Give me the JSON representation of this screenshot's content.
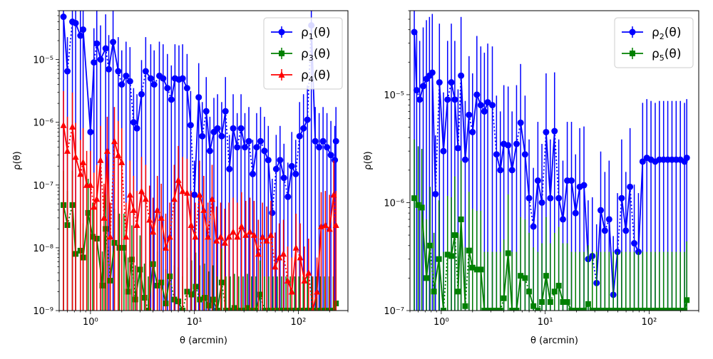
{
  "chart_data": [
    {
      "type": "line",
      "xscale": "log",
      "yscale": "log",
      "xlim": [
        0.5,
        300
      ],
      "ylim": [
        1e-09,
        6e-05
      ],
      "xlabel": "θ (arcmin)",
      "ylabel": "ρ(θ)",
      "xticks": [
        "10⁰",
        "10¹",
        "10²"
      ],
      "yticks": [
        "10⁻⁹",
        "10⁻⁸",
        "10⁻⁷",
        "10⁻⁶",
        "10⁻⁵"
      ],
      "legend_position": "top-right",
      "series": [
        {
          "name": "ρ1(θ)",
          "base": "ρ",
          "sub": "1",
          "color": "#0000ff",
          "marker": "circle",
          "x": [
            0.55,
            0.6,
            0.67,
            0.72,
            0.8,
            0.85,
            1.0,
            1.08,
            1.15,
            1.25,
            1.4,
            1.5,
            1.65,
            1.85,
            2.0,
            2.2,
            2.4,
            2.6,
            2.8,
            3.1,
            3.4,
            3.8,
            4.1,
            4.6,
            5.0,
            5.5,
            6.0,
            6.5,
            7.1,
            7.7,
            8.5,
            9.2,
            10.0,
            11.0,
            11.9,
            13.0,
            14.1,
            15.4,
            16.7,
            18.3,
            19.9,
            21.7,
            23.6,
            25.8,
            28.1,
            30.6,
            33.4,
            36.4,
            39.7,
            43.3,
            47.2,
            51.4,
            56.1,
            61.2,
            66.7,
            72.7,
            79.3,
            86.5,
            94.3,
            102.8,
            112.1,
            122.2,
            133.3,
            145.4,
            158.5,
            172.9,
            188.5,
            205.6,
            224.2,
            230.0
          ],
          "y": [
            4.8e-05,
            6.5e-06,
            4e-05,
            3.8e-05,
            2.4e-05,
            3e-05,
            7e-07,
            9e-06,
            1.8e-05,
            1e-05,
            1.5e-05,
            7e-06,
            1.9e-05,
            6.5e-06,
            4e-06,
            5.5e-06,
            4.5e-06,
            1e-06,
            8e-07,
            2.8e-06,
            6.5e-06,
            5e-06,
            4e-06,
            5.5e-06,
            5e-06,
            3.5e-06,
            2.3e-06,
            5e-06,
            4.8e-06,
            5e-06,
            3.5e-06,
            9e-07,
            7e-08,
            2.5e-06,
            6e-07,
            1.5e-06,
            3.5e-07,
            7e-07,
            8e-07,
            6e-07,
            1.5e-06,
            1.8e-07,
            8e-07,
            4e-07,
            8e-07,
            4e-07,
            5e-07,
            1.5e-07,
            4e-07,
            5e-07,
            3.5e-07,
            2.5e-07,
            3.6e-08,
            1.8e-07,
            2.5e-07,
            1.3e-07,
            6.5e-08,
            2e-07,
            1.5e-07,
            6e-07,
            8e-07,
            1.1e-06,
            3.5e-05,
            5e-07,
            4e-07,
            5e-07,
            4e-07,
            3e-07,
            2.5e-07,
            5e-07
          ]
        },
        {
          "name": "ρ3(θ)",
          "base": "ρ",
          "sub": "3",
          "color": "#008000",
          "marker": "square",
          "x": [
            0.55,
            0.6,
            0.67,
            0.72,
            0.8,
            0.85,
            0.95,
            1.05,
            1.15,
            1.3,
            1.4,
            1.55,
            1.7,
            1.9,
            2.1,
            2.3,
            2.5,
            2.7,
            3.0,
            3.3,
            3.6,
            4.0,
            4.4,
            4.8,
            5.3,
            5.8,
            6.4,
            7.0,
            7.7,
            8.5,
            9.4,
            10.3,
            11.3,
            12.5,
            13.7,
            15.1,
            16.6,
            18.3,
            20.1,
            22.1,
            24.3,
            26.7,
            29.4,
            32.3,
            35.5,
            39.0,
            42.9,
            47.2,
            51.9,
            57.1,
            62.8,
            69.1,
            76.0,
            83.6,
            92.0,
            101.2,
            111.3,
            122.4,
            134.6,
            148.1,
            162.9,
            179.2,
            197.1,
            216.8,
            230.0
          ],
          "y": [
            4.8e-08,
            2.3e-08,
            4.8e-08,
            8e-09,
            9e-09,
            7e-09,
            3.6e-08,
            1.5e-08,
            1.4e-08,
            2.5e-09,
            2e-08,
            3e-09,
            1.2e-08,
            1e-08,
            1e-08,
            2e-09,
            6.5e-09,
            1.5e-09,
            4.5e-09,
            1.6e-09,
            1e-09,
            5.5e-09,
            2.5e-09,
            2.8e-09,
            1.3e-09,
            3.5e-09,
            1.5e-09,
            1.4e-09,
            1e-09,
            2e-09,
            1.8e-09,
            2.4e-09,
            1.5e-09,
            1.6e-09,
            1.2e-09,
            1.5e-09,
            1e-09,
            2.8e-09,
            1e-09,
            1e-09,
            1.1e-09,
            1e-09,
            1e-09,
            1.1e-09,
            1e-09,
            1e-09,
            1.8e-09,
            1e-09,
            1e-09,
            1e-09,
            1e-09,
            1e-09,
            1e-09,
            1e-09,
            1e-09,
            1e-09,
            1e-09,
            1e-09,
            1e-09,
            1e-09,
            1e-09,
            1e-09,
            1e-09,
            1e-09,
            1.3e-09
          ]
        },
        {
          "name": "ρ4(θ)",
          "base": "ρ",
          "sub": "4",
          "color": "#ff0000",
          "marker": "triangle",
          "x": [
            0.55,
            0.6,
            0.67,
            0.72,
            0.8,
            0.85,
            0.92,
            1.0,
            1.08,
            1.15,
            1.25,
            1.35,
            1.45,
            1.55,
            1.7,
            1.85,
            2.0,
            2.2,
            2.4,
            2.6,
            2.8,
            3.1,
            3.4,
            3.7,
            4.0,
            4.4,
            4.8,
            5.3,
            5.8,
            6.4,
            7.0,
            7.7,
            8.5,
            9.3,
            10.2,
            11.2,
            12.3,
            13.5,
            14.8,
            16.3,
            17.9,
            19.6,
            21.5,
            23.6,
            25.9,
            28.4,
            31.2,
            34.2,
            37.5,
            41.2,
            45.2,
            49.6,
            54.4,
            59.7,
            65.5,
            71.9,
            78.9,
            86.6,
            95.0,
            104.2,
            114.4,
            125.5,
            137.7,
            151.1,
            165.8,
            181.9,
            199.6,
            219.0,
            230.0
          ],
          "y": [
            9e-07,
            3.5e-07,
            8.5e-07,
            2.8e-07,
            1.5e-07,
            2.3e-07,
            1e-07,
            1e-07,
            4.5e-08,
            6e-08,
            2.5e-07,
            3e-08,
            3.5e-07,
            1.5e-08,
            5e-07,
            3e-07,
            2.3e-07,
            1.5e-08,
            7e-08,
            4e-08,
            2.3e-08,
            8e-08,
            6e-08,
            2.8e-08,
            1.8e-08,
            4e-08,
            3e-08,
            1e-08,
            1.5e-08,
            6e-08,
            1.2e-07,
            8e-08,
            7.5e-08,
            2.3e-08,
            1.5e-08,
            7e-08,
            4e-08,
            1.5e-08,
            6e-08,
            1.3e-08,
            1.5e-08,
            1.2e-08,
            1.5e-08,
            1.8e-08,
            1.5e-08,
            2.2e-08,
            1.6e-08,
            1.8e-08,
            1.6e-08,
            8e-09,
            1.5e-08,
            1.3e-08,
            1.6e-08,
            5e-09,
            7e-09,
            8e-09,
            3e-09,
            2e-09,
            1e-08,
            7e-09,
            3e-09,
            4e-09,
            1e-09,
            2e-09,
            2.2e-08,
            2.3e-08,
            2e-08,
            7e-08,
            2.3e-08
          ]
        }
      ]
    },
    {
      "type": "line",
      "xscale": "log",
      "yscale": "log",
      "xlim": [
        0.5,
        300
      ],
      "ylim": [
        1e-07,
        6e-05
      ],
      "xlabel": "θ (arcmin)",
      "ylabel": "ρ(θ)",
      "xticks": [
        "10⁰",
        "10¹",
        "10²"
      ],
      "yticks": [
        "10⁻⁷",
        "10⁻⁶",
        "10⁻⁵"
      ],
      "legend_position": "top-right",
      "series": [
        {
          "name": "ρ2(θ)",
          "base": "ρ",
          "sub": "2",
          "color": "#0000ff",
          "marker": "circle",
          "x": [
            0.55,
            0.58,
            0.62,
            0.67,
            0.72,
            0.77,
            0.82,
            0.88,
            0.96,
            1.05,
            1.15,
            1.25,
            1.35,
            1.45,
            1.55,
            1.7,
            1.85,
            2.0,
            2.2,
            2.4,
            2.6,
            2.8,
            3.1,
            3.4,
            3.7,
            4.0,
            4.4,
            4.8,
            5.3,
            5.8,
            6.4,
            7.0,
            7.7,
            8.5,
            9.3,
            10.2,
            11.2,
            12.3,
            13.5,
            14.8,
            16.3,
            17.9,
            19.6,
            21.5,
            23.6,
            25.9,
            28.4,
            31.2,
            34.2,
            37.5,
            41.2,
            45.2,
            49.6,
            54.4,
            59.7,
            65.5,
            71.9,
            78.9,
            86.6,
            95.0,
            104.2,
            114.4,
            125.5,
            137.7,
            151.1,
            165.8,
            181.9,
            199.6,
            219.0,
            230.0
          ],
          "y": [
            3.8e-05,
            1.1e-05,
            9e-06,
            1.2e-05,
            1.4e-05,
            1.5e-05,
            1.6e-05,
            1.2e-06,
            1.3e-05,
            3e-06,
            9e-06,
            1.3e-05,
            9e-06,
            3.2e-06,
            1.5e-05,
            2.5e-06,
            6.5e-06,
            4.5e-06,
            1e-05,
            8e-06,
            7e-06,
            8.5e-06,
            8e-06,
            2.8e-06,
            2e-06,
            3.5e-06,
            3.4e-06,
            2e-06,
            3.5e-06,
            5.5e-06,
            2.8e-06,
            1.1e-06,
            6e-07,
            1.6e-06,
            1e-06,
            4.5e-06,
            1.1e-06,
            4.6e-06,
            1.1e-06,
            7e-07,
            1.6e-06,
            1.6e-06,
            8e-07,
            1.4e-06,
            1.45e-06,
            3e-07,
            3.2e-07,
            1.8e-07,
            8.5e-07,
            5.5e-07,
            7e-07,
            1.4e-07,
            3.5e-07,
            1.1e-06,
            5.5e-07,
            1.4e-06,
            4.2e-07,
            3.5e-07,
            2.4e-06,
            2.6e-06,
            2.5e-06,
            2.4e-06,
            2.5e-06,
            2.5e-06,
            2.5e-06,
            2.5e-06,
            2.5e-06,
            2.5e-06,
            2.4e-06,
            2.6e-06
          ]
        },
        {
          "name": "ρ5(θ)",
          "base": "ρ",
          "sub": "5",
          "color": "#008000",
          "marker": "square",
          "x": [
            0.55,
            0.6,
            0.65,
            0.72,
            0.78,
            0.85,
            0.95,
            1.05,
            1.15,
            1.25,
            1.35,
            1.45,
            1.55,
            1.7,
            1.85,
            2.0,
            2.2,
            2.4,
            2.6,
            2.8,
            3.1,
            3.4,
            3.7,
            4.0,
            4.4,
            4.8,
            5.3,
            5.8,
            6.4,
            7.0,
            7.7,
            8.5,
            9.3,
            10.2,
            11.2,
            12.3,
            13.5,
            14.8,
            16.3,
            17.9,
            19.6,
            21.5,
            23.6,
            25.9,
            28.4,
            31.2,
            34.2,
            37.5,
            41.2,
            45.2,
            49.6,
            54.4,
            59.7,
            65.5,
            71.9,
            78.9,
            86.6,
            95.0,
            104.2,
            114.4,
            125.5,
            137.7,
            151.1,
            165.8,
            181.9,
            199.6,
            219.0,
            230.0
          ],
          "y": [
            1.1e-06,
            9.5e-07,
            9e-07,
            2e-07,
            4e-07,
            1.5e-07,
            3e-07,
            1e-07,
            3.3e-07,
            3.2e-07,
            5e-07,
            1.5e-07,
            7e-07,
            1.1e-07,
            3.6e-07,
            2.5e-07,
            2.4e-07,
            2.4e-07,
            1e-07,
            1e-07,
            1e-07,
            1e-07,
            1e-07,
            1.3e-07,
            3.4e-07,
            1e-07,
            1e-07,
            2.1e-07,
            2e-07,
            1.5e-07,
            1.1e-07,
            1e-07,
            1.2e-07,
            2.1e-07,
            1.2e-07,
            1.5e-07,
            1.7e-07,
            1.2e-07,
            1.2e-07,
            1e-07,
            1e-07,
            1e-07,
            1e-07,
            1.15e-07,
            1e-07,
            1e-07,
            1e-07,
            1e-07,
            1e-07,
            1e-07,
            1e-07,
            1e-07,
            1e-07,
            1e-07,
            1e-07,
            1e-07,
            1e-07,
            1e-07,
            1e-07,
            1e-07,
            1e-07,
            1e-07,
            1e-07,
            1e-07,
            1e-07,
            1e-07,
            1e-07,
            1.25e-07
          ]
        }
      ]
    }
  ]
}
